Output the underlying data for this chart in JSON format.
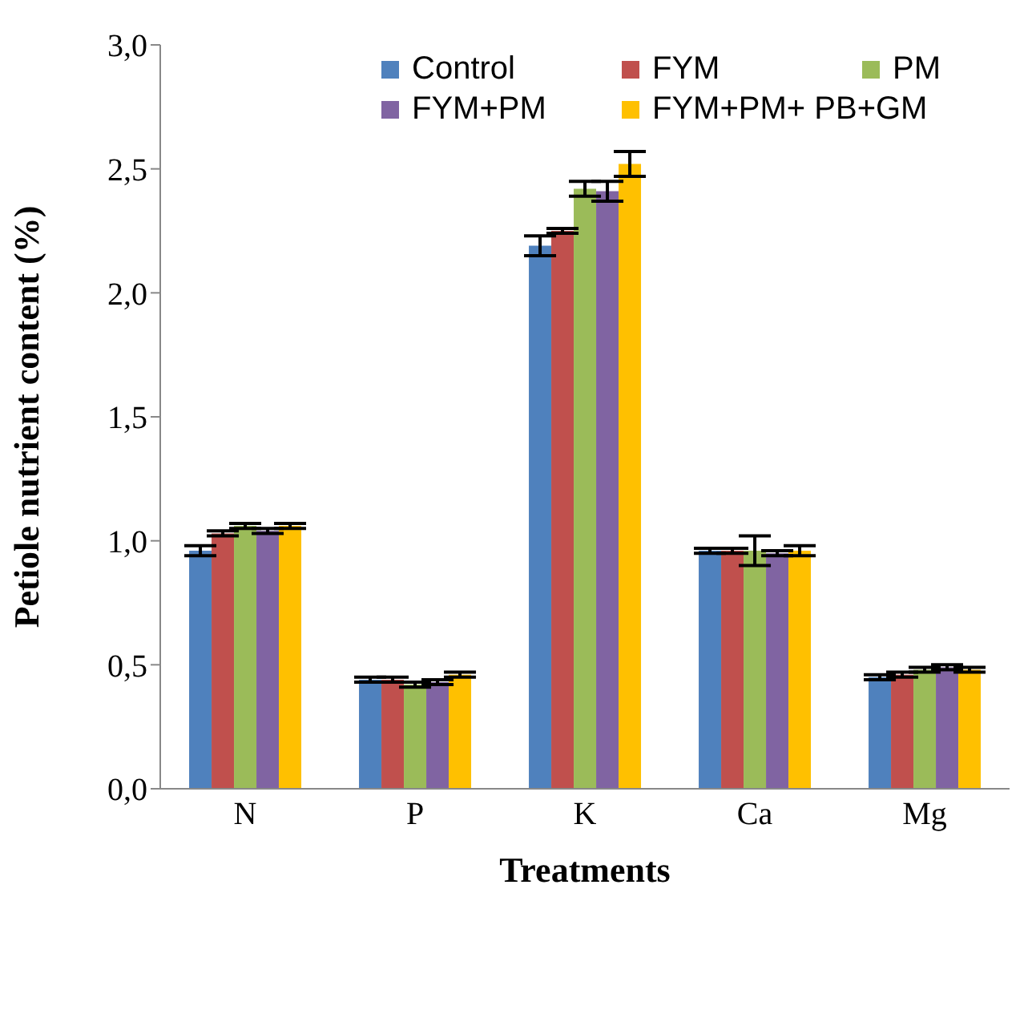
{
  "chart_data": {
    "type": "bar",
    "xlabel": "Treatments",
    "ylabel": "Petiole nutrient content (%)",
    "categories": [
      "N",
      "P",
      "K",
      "Ca",
      "Mg"
    ],
    "series": [
      {
        "name": "Control",
        "color": "#4f81bd",
        "values": [
          0.96,
          0.44,
          2.19,
          0.96,
          0.45
        ],
        "errors": [
          0.02,
          0.01,
          0.04,
          0.01,
          0.01
        ]
      },
      {
        "name": "FYM",
        "color": "#c0504d",
        "values": [
          1.03,
          0.44,
          2.25,
          0.96,
          0.46
        ],
        "errors": [
          0.01,
          0.01,
          0.01,
          0.01,
          0.01
        ]
      },
      {
        "name": "PM",
        "color": "#9bbb59",
        "values": [
          1.06,
          0.42,
          2.42,
          0.96,
          0.48
        ],
        "errors": [
          0.01,
          0.01,
          0.03,
          0.06,
          0.01
        ]
      },
      {
        "name": "FYM+PM",
        "color": "#8064a2",
        "values": [
          1.04,
          0.43,
          2.41,
          0.95,
          0.49
        ],
        "errors": [
          0.01,
          0.01,
          0.04,
          0.01,
          0.01
        ]
      },
      {
        "name": "FYM+PM+ PB+GM",
        "color": "#ffc000",
        "values": [
          1.06,
          0.46,
          2.52,
          0.96,
          0.48
        ],
        "errors": [
          0.01,
          0.01,
          0.05,
          0.02,
          0.01
        ]
      }
    ],
    "ylim": [
      0,
      3
    ],
    "yticks": [
      {
        "value": 0,
        "label": "0,0"
      },
      {
        "value": 0.5,
        "label": "0,5"
      },
      {
        "value": 1,
        "label": "1,0"
      },
      {
        "value": 1.5,
        "label": "1,5"
      },
      {
        "value": 2,
        "label": "2,0"
      },
      {
        "value": 2.5,
        "label": "2,5"
      },
      {
        "value": 3,
        "label": "3,0"
      }
    ],
    "grid": false,
    "legend": "top right"
  }
}
